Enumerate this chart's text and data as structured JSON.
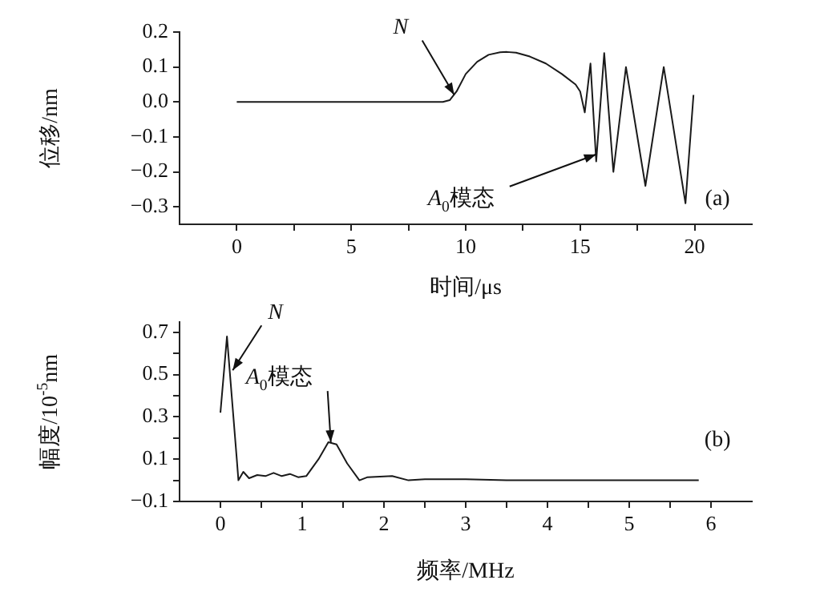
{
  "chart_data": [
    {
      "type": "line",
      "xlabel": "时间/μs",
      "ylabel": "位移/nm",
      "grid": false,
      "legend": false,
      "marker": "none",
      "xlim": [
        -2.5,
        22.5
      ],
      "xticks": [
        0,
        {
          "value": 2.5,
          "label": null
        },
        5,
        {
          "value": 7.5,
          "label": null
        },
        10,
        {
          "value": 12.5,
          "label": null
        },
        15,
        {
          "value": 17.5,
          "label": null
        },
        20
      ],
      "ylim": [
        -0.35,
        0.2
      ],
      "yticks": [
        {
          "value": -0.3,
          "label": "−0.3"
        },
        {
          "value": -0.2,
          "label": "−0.2"
        },
        {
          "value": -0.1,
          "label": "−0.1"
        },
        {
          "value": 0,
          "label": "0.0"
        },
        0.1,
        0.2
      ],
      "series": [
        {
          "color": "#1a1a1a",
          "x": [
            0,
            5,
            9.0,
            9.3,
            9.6,
            10.0,
            10.5,
            11.0,
            11.5,
            11.8,
            12.2,
            12.8,
            13.5,
            14.2,
            14.8,
            15.0,
            15.2,
            15.45,
            15.7,
            16.05,
            16.45,
            17.0,
            17.85,
            18.65,
            19.6,
            19.95
          ],
          "values": [
            0,
            0,
            0,
            0.005,
            0.03,
            0.08,
            0.115,
            0.135,
            0.142,
            0.143,
            0.141,
            0.13,
            0.11,
            0.08,
            0.05,
            0.03,
            -0.03,
            0.11,
            -0.17,
            0.14,
            -0.2,
            0.1,
            -0.24,
            0.1,
            -0.29,
            0.02
          ]
        }
      ],
      "annotations": [
        {
          "text": "N",
          "x": 9.5,
          "y": 0.02
        },
        {
          "text": "A$_{0}$模态",
          "x": 15.7,
          "y": -0.15
        },
        "(a)"
      ]
    },
    {
      "type": "line",
      "xlabel": "频率/MHz",
      "ylabel": "幅度/10$^{-5}$nm",
      "grid": false,
      "legend": false,
      "marker": "none",
      "xlim": [
        -0.5,
        6.5
      ],
      "xticks": [
        0,
        {
          "value": 0.5,
          "label": null
        },
        1,
        {
          "value": 1.5,
          "label": null
        },
        2,
        {
          "value": 2.5,
          "label": null
        },
        3,
        {
          "value": 3.5,
          "label": null
        },
        4,
        {
          "value": 4.5,
          "label": null
        },
        5,
        {
          "value": 5.5,
          "label": null
        },
        6
      ],
      "ylim": [
        -0.1,
        0.75
      ],
      "yticks": [
        {
          "value": -0.1,
          "label": "−0.1"
        },
        {
          "value": 0,
          "label": null
        },
        0.1,
        {
          "value": 0.2,
          "label": null
        },
        0.3,
        {
          "value": 0.4,
          "label": null
        },
        0.5,
        {
          "value": 0.6,
          "label": null
        },
        0.7
      ],
      "series": [
        {
          "color": "#1a1a1a",
          "x": [
            0,
            0.08,
            0.2,
            0.22,
            0.28,
            0.35,
            0.45,
            0.55,
            0.65,
            0.75,
            0.85,
            0.95,
            1.05,
            1.2,
            1.32,
            1.42,
            1.55,
            1.7,
            1.8,
            2.1,
            2.3,
            2.5,
            3.0,
            3.5,
            5.85
          ],
          "values": [
            0.32,
            0.68,
            0.1,
            0.0,
            0.04,
            0.01,
            0.025,
            0.02,
            0.035,
            0.02,
            0.03,
            0.015,
            0.02,
            0.1,
            0.18,
            0.17,
            0.08,
            0.0,
            0.015,
            0.02,
            0.0,
            0.005,
            0.005,
            0.0,
            0.0
          ]
        }
      ],
      "annotations": [
        {
          "text": "N",
          "x": 0.15,
          "y": 0.52
        },
        {
          "text": "A$_{0}$模态",
          "x": 1.35,
          "y": 0.18
        },
        "(b)"
      ]
    }
  ]
}
